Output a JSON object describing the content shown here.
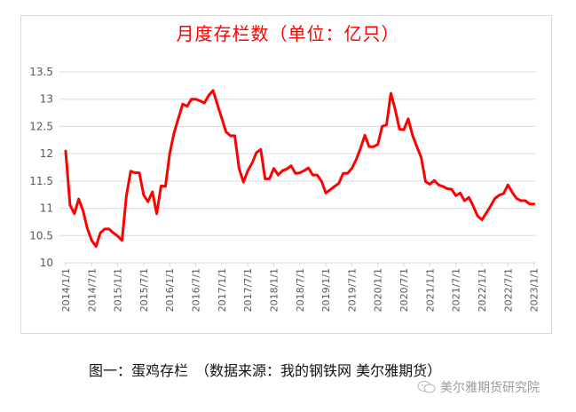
{
  "chart_data": {
    "type": "line",
    "title": "月度存栏数（单位：亿只）",
    "xlabel": "",
    "ylabel": "",
    "ylim": [
      10,
      13.5
    ],
    "yticks": [
      "13.5",
      "13",
      "12.5",
      "12",
      "11.5",
      "11",
      "10.5",
      "10"
    ],
    "xtick_labels": [
      "2014/1/1",
      "2014/7/1",
      "2015/1/1",
      "2015/7/1",
      "2016/1/1",
      "2016/7/1",
      "2017/1/1",
      "2017/7/1",
      "2018/1/1",
      "2018/7/1",
      "2019/1/1",
      "2019/7/1",
      "2020/1/1",
      "2020/7/1",
      "2021/1/1",
      "2021/7/1",
      "2022/1/1",
      "2022/7/1",
      "2023/1/1"
    ],
    "grid": true,
    "legend": null,
    "x_start": "2014-01",
    "x_end": "2023-01",
    "frequency": "monthly",
    "series": [
      {
        "name": "月度存栏数",
        "color": "#ff0000",
        "values": [
          12.05,
          11.06,
          10.9,
          11.17,
          10.96,
          10.63,
          10.41,
          10.3,
          10.55,
          10.62,
          10.62,
          10.55,
          10.49,
          10.41,
          11.23,
          11.68,
          11.65,
          11.65,
          11.24,
          11.12,
          11.3,
          10.9,
          11.41,
          11.4,
          12.0,
          12.38,
          12.65,
          12.91,
          12.87,
          13.0,
          13.0,
          12.97,
          12.93,
          13.07,
          13.16,
          12.9,
          12.65,
          12.4,
          12.33,
          12.33,
          11.73,
          11.48,
          11.69,
          11.83,
          12.02,
          12.08,
          11.54,
          11.54,
          11.73,
          11.61,
          11.69,
          11.72,
          11.78,
          11.64,
          11.65,
          11.69,
          11.74,
          11.61,
          11.61,
          11.5,
          11.28,
          11.34,
          11.4,
          11.46,
          11.64,
          11.64,
          11.73,
          11.89,
          12.1,
          12.34,
          12.13,
          12.13,
          12.17,
          12.5,
          12.53,
          13.11,
          12.81,
          12.45,
          12.44,
          12.64,
          12.34,
          12.13,
          11.93,
          11.49,
          11.44,
          11.51,
          11.43,
          11.4,
          11.36,
          11.35,
          11.23,
          11.28,
          11.14,
          11.2,
          11.04,
          10.86,
          10.79,
          10.91,
          11.04,
          11.18,
          11.24,
          11.27,
          11.43,
          11.29,
          11.18,
          11.14,
          11.14,
          11.08,
          11.08
        ]
      }
    ]
  },
  "colors": {
    "line": "#ff0000",
    "title": "#ff0000",
    "grid": "#d9d9d9",
    "tick_text": "#595959"
  },
  "caption": "图一：蛋鸡存栏　（数据来源：我的钢铁网 美尔雅期货）",
  "watermark": {
    "icon": "wechat-icon",
    "text": "美尔雅期货研究院"
  }
}
